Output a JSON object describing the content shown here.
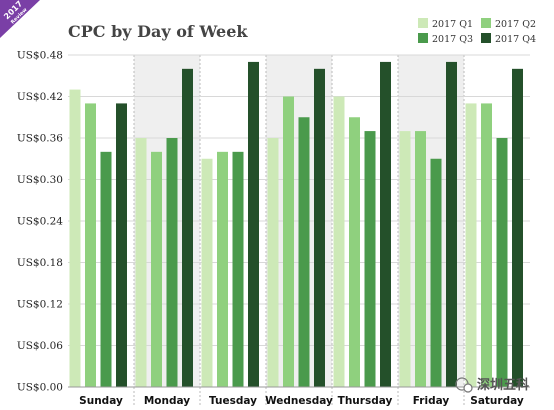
{
  "badge": {
    "line1": "2017",
    "line2": "Review"
  },
  "watermark": {
    "text": "深圳五科"
  },
  "colors": {
    "series": [
      "#cde9b7",
      "#8fd07e",
      "#4a9a4c",
      "#24502a"
    ],
    "band": "#efefef",
    "grid": "#d8d8d8",
    "badge": "#7a3fa6"
  },
  "chart_data": {
    "type": "bar",
    "title": "CPC by Day of Week",
    "xlabel": "",
    "ylabel": "",
    "ylim": [
      0,
      0.48
    ],
    "yticks": [
      "US$0.00",
      "US$0.06",
      "US$0.12",
      "US$0.18",
      "US$0.24",
      "US$0.30",
      "US$0.36",
      "US$0.42",
      "US$0.48"
    ],
    "grid": true,
    "legend_position": "top-right",
    "categories": [
      "Sunday",
      "Monday",
      "Tuesday",
      "Wednesday",
      "Thursday",
      "Friday",
      "Saturday"
    ],
    "series": [
      {
        "name": "2017 Q1",
        "values": [
          0.43,
          0.36,
          0.33,
          0.36,
          0.42,
          0.37,
          0.41
        ]
      },
      {
        "name": "2017 Q2",
        "values": [
          0.41,
          0.34,
          0.34,
          0.42,
          0.39,
          0.37,
          0.41
        ]
      },
      {
        "name": "2017 Q3",
        "values": [
          0.34,
          0.36,
          0.34,
          0.39,
          0.37,
          0.33,
          0.36
        ]
      },
      {
        "name": "2017 Q4",
        "values": [
          0.41,
          0.46,
          0.47,
          0.46,
          0.47,
          0.47,
          0.46
        ]
      }
    ]
  }
}
